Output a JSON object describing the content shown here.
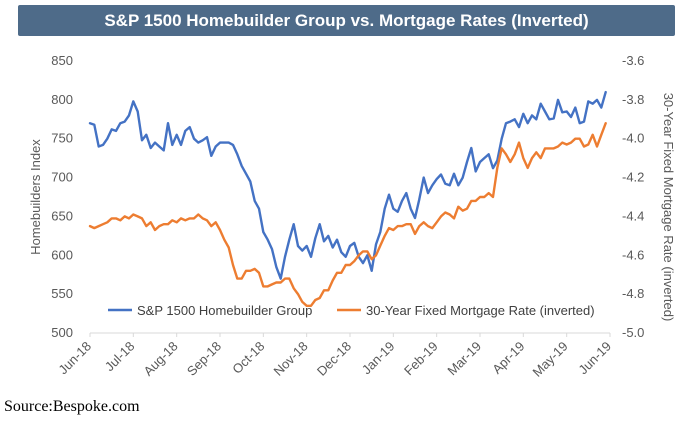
{
  "chart_data": {
    "type": "line",
    "title": "S&P 1500 Homebuilder Group vs. Mortgage Rates (Inverted)",
    "ylabel_left": "Homebuilders Index",
    "ylabel_right": "30-Year Fixed Mortgage Rate (inverted)",
    "ylim_left": [
      500,
      850
    ],
    "ylim_right": [
      -5.0,
      -3.6
    ],
    "y_ticks_left": [
      "850",
      "800",
      "750",
      "700",
      "650",
      "600",
      "550",
      "500"
    ],
    "y_ticks_right": [
      "-3.6",
      "-3.8",
      "-4.0",
      "-4.2",
      "-4.4",
      "-4.6",
      "-4.8",
      "-5.0"
    ],
    "x_ticks": [
      "Jun-18",
      "Jul-18",
      "Aug-18",
      "Sep-18",
      "Oct-18",
      "Nov-18",
      "Dec-18",
      "Jan-19",
      "Feb-19",
      "Mar-19",
      "Apr-19",
      "May-19",
      "Jun-19"
    ],
    "grid": false,
    "legend_position": "bottom-inside",
    "series": [
      {
        "name": "S&P 1500 Homebuilder Group",
        "axis": "left",
        "color": "#4472C4",
        "x": [
          0,
          0.1,
          0.2,
          0.3,
          0.4,
          0.5,
          0.6,
          0.7,
          0.8,
          0.9,
          1.0,
          1.1,
          1.2,
          1.3,
          1.4,
          1.5,
          1.6,
          1.7,
          1.8,
          1.9,
          2.0,
          2.1,
          2.2,
          2.3,
          2.4,
          2.5,
          2.6,
          2.7,
          2.8,
          2.9,
          3.0,
          3.1,
          3.2,
          3.3,
          3.4,
          3.5,
          3.6,
          3.7,
          3.8,
          3.9,
          4.0,
          4.1,
          4.2,
          4.3,
          4.4,
          4.5,
          4.6,
          4.7,
          4.8,
          4.9,
          5.0,
          5.1,
          5.2,
          5.3,
          5.4,
          5.5,
          5.6,
          5.7,
          5.8,
          5.9,
          6.0,
          6.1,
          6.2,
          6.3,
          6.4,
          6.5,
          6.6,
          6.7,
          6.8,
          6.9,
          7.0,
          7.1,
          7.2,
          7.3,
          7.4,
          7.5,
          7.6,
          7.7,
          7.8,
          7.9,
          8.0,
          8.1,
          8.2,
          8.3,
          8.4,
          8.5,
          8.6,
          8.7,
          8.8,
          8.9,
          9.0,
          9.1,
          9.2,
          9.3,
          9.4,
          9.5,
          9.6,
          9.7,
          9.8,
          9.9,
          10.0,
          10.1,
          10.2,
          10.3,
          10.4,
          10.5,
          10.6,
          10.7,
          10.8,
          10.9,
          11.0,
          11.1,
          11.2,
          11.3,
          11.4,
          11.5,
          11.6,
          11.7,
          11.8,
          11.9
        ],
        "values": [
          770,
          768,
          740,
          742,
          750,
          762,
          760,
          770,
          772,
          780,
          798,
          785,
          748,
          755,
          738,
          745,
          740,
          735,
          770,
          742,
          755,
          742,
          760,
          765,
          750,
          745,
          748,
          752,
          728,
          740,
          745,
          745,
          745,
          742,
          730,
          715,
          705,
          695,
          670,
          660,
          630,
          620,
          608,
          585,
          570,
          598,
          620,
          640,
          612,
          606,
          612,
          598,
          622,
          640,
          618,
          625,
          610,
          620,
          604,
          598,
          612,
          616,
          598,
          590,
          600,
          580,
          614,
          630,
          660,
          678,
          660,
          656,
          670,
          680,
          660,
          648,
          672,
          700,
          680,
          690,
          698,
          704,
          692,
          690,
          705,
          690,
          700,
          720,
          738,
          708,
          720,
          725,
          730,
          712,
          722,
          750,
          770,
          772,
          775,
          765,
          782,
          770,
          780,
          775,
          795,
          785,
          775,
          776,
          800,
          784,
          785,
          778,
          790,
          770,
          772,
          798,
          795,
          800,
          790,
          810
        ]
      },
      {
        "name": "30-Year Fixed Mortgage Rate (inverted)",
        "axis": "right",
        "color": "#ED7D31",
        "x": [
          0,
          0.1,
          0.2,
          0.3,
          0.4,
          0.5,
          0.6,
          0.7,
          0.8,
          0.9,
          1.0,
          1.1,
          1.2,
          1.3,
          1.4,
          1.5,
          1.6,
          1.7,
          1.8,
          1.9,
          2.0,
          2.1,
          2.2,
          2.3,
          2.4,
          2.5,
          2.6,
          2.7,
          2.8,
          2.9,
          3.0,
          3.1,
          3.2,
          3.3,
          3.4,
          3.5,
          3.6,
          3.7,
          3.8,
          3.9,
          4.0,
          4.1,
          4.2,
          4.3,
          4.4,
          4.5,
          4.6,
          4.7,
          4.8,
          4.9,
          5.0,
          5.1,
          5.2,
          5.3,
          5.4,
          5.5,
          5.6,
          5.7,
          5.8,
          5.9,
          6.0,
          6.1,
          6.2,
          6.3,
          6.4,
          6.5,
          6.6,
          6.7,
          6.8,
          6.9,
          7.0,
          7.1,
          7.2,
          7.3,
          7.4,
          7.5,
          7.6,
          7.7,
          7.8,
          7.9,
          8.0,
          8.1,
          8.2,
          8.3,
          8.4,
          8.5,
          8.6,
          8.7,
          8.8,
          8.9,
          9.0,
          9.1,
          9.2,
          9.3,
          9.4,
          9.5,
          9.6,
          9.7,
          9.8,
          9.9,
          10.0,
          10.1,
          10.2,
          10.3,
          10.4,
          10.5,
          10.6,
          10.7,
          10.8,
          10.9,
          11.0,
          11.1,
          11.2,
          11.3,
          11.4,
          11.5,
          11.6,
          11.7,
          11.8,
          11.9
        ],
        "values": [
          -4.45,
          -4.46,
          -4.45,
          -4.44,
          -4.43,
          -4.41,
          -4.41,
          -4.42,
          -4.4,
          -4.41,
          -4.39,
          -4.4,
          -4.41,
          -4.45,
          -4.43,
          -4.47,
          -4.45,
          -4.44,
          -4.44,
          -4.42,
          -4.43,
          -4.41,
          -4.42,
          -4.41,
          -4.41,
          -4.39,
          -4.41,
          -4.42,
          -4.45,
          -4.43,
          -4.47,
          -4.52,
          -4.56,
          -4.65,
          -4.72,
          -4.72,
          -4.68,
          -4.68,
          -4.67,
          -4.69,
          -4.76,
          -4.76,
          -4.75,
          -4.74,
          -4.74,
          -4.72,
          -4.72,
          -4.77,
          -4.8,
          -4.84,
          -4.86,
          -4.86,
          -4.83,
          -4.82,
          -4.78,
          -4.78,
          -4.73,
          -4.69,
          -4.69,
          -4.65,
          -4.65,
          -4.63,
          -4.6,
          -4.58,
          -4.58,
          -4.62,
          -4.6,
          -4.55,
          -4.5,
          -4.46,
          -4.47,
          -4.45,
          -4.45,
          -4.44,
          -4.44,
          -4.49,
          -4.45,
          -4.43,
          -4.45,
          -4.46,
          -4.43,
          -4.4,
          -4.38,
          -4.39,
          -4.41,
          -4.35,
          -4.37,
          -4.36,
          -4.32,
          -4.32,
          -4.3,
          -4.3,
          -4.28,
          -4.3,
          -4.15,
          -4.05,
          -4.08,
          -4.12,
          -4.08,
          -4.02,
          -4.1,
          -4.15,
          -4.1,
          -4.07,
          -4.1,
          -4.05,
          -4.05,
          -4.05,
          -4.04,
          -4.02,
          -4.03,
          -4.02,
          -4.0,
          -4.0,
          -4.04,
          -4.03,
          -3.98,
          -4.04,
          -3.98,
          -3.92
        ]
      }
    ]
  },
  "source": "Source:Bespoke.com",
  "colors": {
    "title_bg": "#4E6B89",
    "left_series": "#4472C4",
    "right_series": "#ED7D31"
  }
}
